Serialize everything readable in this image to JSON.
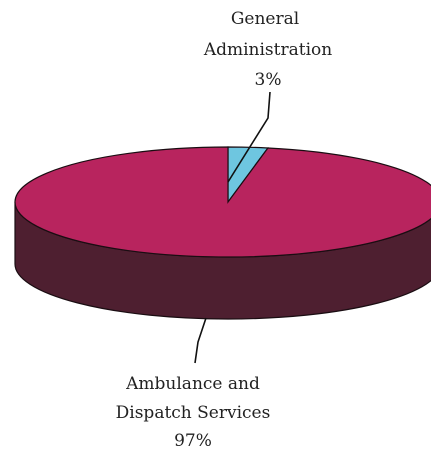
{
  "chart_data": {
    "type": "pie",
    "title": "",
    "style": "3d",
    "slices": [
      {
        "label_lines": [
          "General",
          "Administration"
        ],
        "percent_label": "3%",
        "value": 3,
        "color": "#6ec6e0",
        "side_color": "#3a8fa8"
      },
      {
        "label_lines": [
          "Ambulance and",
          "Dispatch Services"
        ],
        "percent_label": "97%",
        "value": 97,
        "color": "#b8245e",
        "side_color": "#4e1f30"
      }
    ]
  }
}
